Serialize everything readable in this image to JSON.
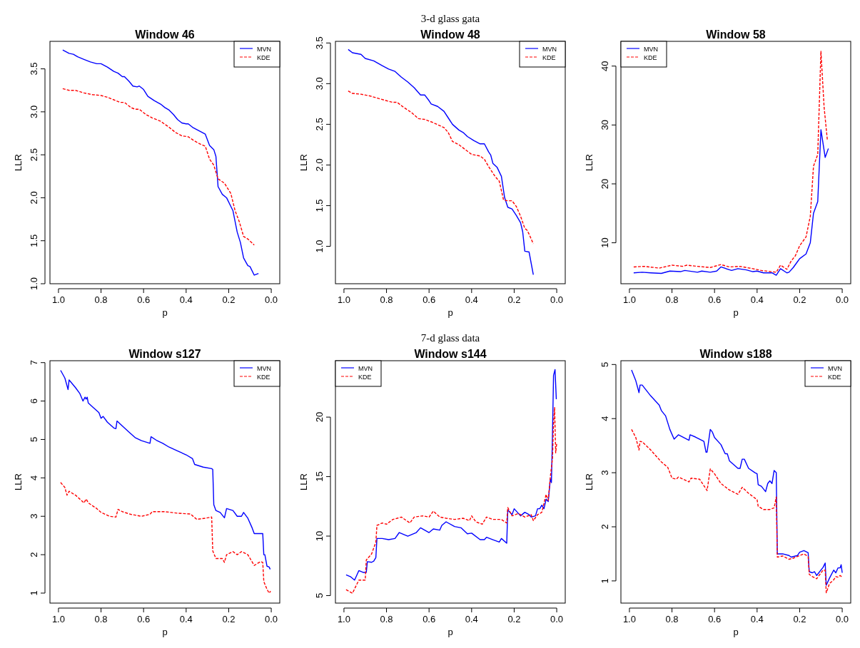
{
  "chart_data": [
    {
      "type": "line",
      "title": "Window 46",
      "xlabel": "p",
      "ylabel": "LLR",
      "legend": "top right",
      "xlim": [
        1.04,
        -0.04
      ],
      "ylim": [
        1.0,
        3.82
      ],
      "xticks": [
        {
          "value": 1,
          "label": "1.0"
        },
        {
          "value": 0.8,
          "label": "0.8"
        },
        {
          "value": 0.6,
          "label": "0.6"
        },
        {
          "value": 0.4,
          "label": "0.4"
        },
        {
          "value": 0.2,
          "label": "0.2"
        },
        {
          "value": 0,
          "label": "0.0"
        }
      ],
      "yticks": [
        {
          "value": 1,
          "label": "1.0"
        },
        1.5,
        {
          "value": 2,
          "label": "2.0"
        },
        2.5,
        {
          "value": 3,
          "label": "3.0"
        },
        3.5
      ],
      "series": [
        {
          "name": "MVN",
          "color": "#0000ff",
          "line_style": "solid",
          "x": [
            0.98,
            0.95,
            0.93,
            0.91,
            0.88,
            0.85,
            0.82,
            0.8,
            0.77,
            0.74,
            0.72,
            0.7,
            0.69,
            0.67,
            0.65,
            0.63,
            0.62,
            0.6,
            0.58,
            0.55,
            0.52,
            0.5,
            0.48,
            0.46,
            0.44,
            0.42,
            0.4,
            0.39,
            0.37,
            0.34,
            0.31,
            0.29,
            0.27,
            0.26,
            0.25,
            0.23,
            0.21,
            0.19,
            0.18,
            0.16,
            0.145,
            0.13,
            0.11,
            0.1,
            0.08,
            0.06
          ],
          "values": [
            3.72,
            3.68,
            3.67,
            3.64,
            3.61,
            3.58,
            3.56,
            3.56,
            3.52,
            3.47,
            3.45,
            3.41,
            3.41,
            3.36,
            3.3,
            3.29,
            3.3,
            3.26,
            3.18,
            3.13,
            3.09,
            3.05,
            3.02,
            2.97,
            2.91,
            2.87,
            2.86,
            2.86,
            2.82,
            2.78,
            2.74,
            2.61,
            2.56,
            2.48,
            2.13,
            2.04,
            2.0,
            1.9,
            1.85,
            1.6,
            1.48,
            1.3,
            1.21,
            1.2,
            1.1,
            1.12
          ]
        },
        {
          "name": "KDE",
          "color": "#ff0000",
          "line_style": "dashed",
          "x": [
            0.98,
            0.95,
            0.92,
            0.88,
            0.84,
            0.8,
            0.77,
            0.74,
            0.71,
            0.69,
            0.66,
            0.64,
            0.62,
            0.59,
            0.56,
            0.52,
            0.48,
            0.45,
            0.42,
            0.39,
            0.36,
            0.33,
            0.31,
            0.29,
            0.27,
            0.25,
            0.22,
            0.19,
            0.17,
            0.15,
            0.13,
            0.11,
            0.08
          ],
          "values": [
            3.27,
            3.25,
            3.25,
            3.22,
            3.2,
            3.19,
            3.17,
            3.14,
            3.11,
            3.11,
            3.05,
            3.03,
            3.03,
            2.97,
            2.93,
            2.89,
            2.82,
            2.76,
            2.72,
            2.71,
            2.66,
            2.62,
            2.6,
            2.45,
            2.38,
            2.22,
            2.17,
            2.05,
            1.85,
            1.72,
            1.55,
            1.52,
            1.45
          ]
        }
      ]
    },
    {
      "type": "line",
      "subtitle": "3-d glass gata",
      "title": "Window 48",
      "xlabel": "p",
      "ylabel": "LLR",
      "legend": "top right",
      "xlim": [
        1.04,
        -0.04
      ],
      "ylim": [
        0.54,
        3.52
      ],
      "xticks": [
        {
          "value": 1,
          "label": "1.0"
        },
        {
          "value": 0.8,
          "label": "0.8"
        },
        {
          "value": 0.6,
          "label": "0.6"
        },
        {
          "value": 0.4,
          "label": "0.4"
        },
        {
          "value": 0.2,
          "label": "0.2"
        },
        {
          "value": 0,
          "label": "0.0"
        }
      ],
      "yticks": [
        {
          "value": 1,
          "label": "1.0"
        },
        1.5,
        {
          "value": 2,
          "label": "2.0"
        },
        2.5,
        {
          "value": 3,
          "label": "3.0"
        },
        3.5
      ],
      "series": [
        {
          "name": "MVN",
          "color": "#0000ff",
          "line_style": "solid",
          "x": [
            0.98,
            0.96,
            0.92,
            0.9,
            0.86,
            0.82,
            0.79,
            0.76,
            0.73,
            0.7,
            0.67,
            0.64,
            0.62,
            0.6,
            0.59,
            0.56,
            0.53,
            0.51,
            0.49,
            0.46,
            0.44,
            0.42,
            0.39,
            0.36,
            0.34,
            0.32,
            0.31,
            0.3,
            0.28,
            0.26,
            0.245,
            0.23,
            0.21,
            0.19,
            0.17,
            0.16,
            0.15,
            0.13,
            0.11
          ],
          "values": [
            3.42,
            3.38,
            3.36,
            3.31,
            3.28,
            3.22,
            3.18,
            3.15,
            3.08,
            3.02,
            2.95,
            2.86,
            2.86,
            2.79,
            2.75,
            2.72,
            2.66,
            2.58,
            2.5,
            2.43,
            2.4,
            2.35,
            2.3,
            2.26,
            2.26,
            2.16,
            2.12,
            2.02,
            1.97,
            1.86,
            1.6,
            1.48,
            1.46,
            1.38,
            1.29,
            1.18,
            0.94,
            0.93,
            0.65
          ]
        },
        {
          "name": "KDE",
          "color": "#ff0000",
          "line_style": "dashed",
          "x": [
            0.98,
            0.96,
            0.92,
            0.88,
            0.84,
            0.8,
            0.77,
            0.75,
            0.72,
            0.68,
            0.65,
            0.62,
            0.58,
            0.53,
            0.51,
            0.49,
            0.46,
            0.42,
            0.4,
            0.36,
            0.34,
            0.32,
            0.29,
            0.27,
            0.25,
            0.23,
            0.21,
            0.19,
            0.17,
            0.15,
            0.14,
            0.13,
            0.11
          ],
          "values": [
            2.91,
            2.88,
            2.87,
            2.85,
            2.82,
            2.79,
            2.77,
            2.77,
            2.71,
            2.64,
            2.57,
            2.56,
            2.52,
            2.46,
            2.4,
            2.29,
            2.25,
            2.17,
            2.13,
            2.11,
            2.07,
            1.98,
            1.86,
            1.8,
            1.57,
            1.56,
            1.56,
            1.49,
            1.37,
            1.22,
            1.2,
            1.15,
            1.03
          ]
        }
      ]
    },
    {
      "type": "line",
      "title": "Window 58",
      "xlabel": "p",
      "ylabel": "LLR",
      "legend": "top left",
      "xlim": [
        1.04,
        -0.04
      ],
      "ylim": [
        3.05,
        44.2
      ],
      "xticks": [
        {
          "value": 1,
          "label": "1.0"
        },
        {
          "value": 0.8,
          "label": "0.8"
        },
        {
          "value": 0.6,
          "label": "0.6"
        },
        {
          "value": 0.4,
          "label": "0.4"
        },
        {
          "value": 0.2,
          "label": "0.2"
        },
        {
          "value": 0,
          "label": "0.0"
        }
      ],
      "yticks": [
        10,
        20,
        30,
        40
      ],
      "series": [
        {
          "name": "MVN",
          "color": "#0000ff",
          "line_style": "solid",
          "x": [
            0.98,
            0.94,
            0.9,
            0.85,
            0.81,
            0.76,
            0.74,
            0.68,
            0.66,
            0.62,
            0.59,
            0.57,
            0.52,
            0.49,
            0.45,
            0.42,
            0.4,
            0.37,
            0.33,
            0.31,
            0.29,
            0.26,
            0.25,
            0.23,
            0.21,
            0.2,
            0.17,
            0.15,
            0.135,
            0.115,
            0.1,
            0.08,
            0.065
          ],
          "values": [
            4.9,
            5.0,
            4.9,
            4.8,
            5.2,
            5.1,
            5.3,
            5.0,
            5.2,
            5.0,
            5.2,
            5.9,
            5.3,
            5.6,
            5.4,
            5.1,
            5.2,
            4.9,
            4.9,
            4.5,
            5.6,
            4.9,
            5.0,
            5.8,
            6.8,
            7.3,
            8.1,
            10.0,
            15.0,
            17.0,
            29.2,
            24.5,
            26.0
          ]
        },
        {
          "name": "KDE",
          "color": "#ff0000",
          "line_style": "dashed",
          "x": [
            0.98,
            0.93,
            0.86,
            0.8,
            0.75,
            0.73,
            0.68,
            0.62,
            0.57,
            0.53,
            0.48,
            0.42,
            0.38,
            0.31,
            0.29,
            0.26,
            0.24,
            0.22,
            0.2,
            0.17,
            0.15,
            0.135,
            0.115,
            0.1,
            0.085,
            0.07
          ],
          "values": [
            5.9,
            6.0,
            5.7,
            6.2,
            6.0,
            6.2,
            6.0,
            5.8,
            6.3,
            5.9,
            6.0,
            5.6,
            5.3,
            5.0,
            6.2,
            5.5,
            6.9,
            7.8,
            9.5,
            11.0,
            14.5,
            23.0,
            25.0,
            42.5,
            33.0,
            27.5
          ]
        }
      ]
    },
    {
      "type": "line",
      "title": "Window s127",
      "xlabel": "p",
      "ylabel": "LLR",
      "legend": "top right",
      "xlim": [
        1.04,
        -0.04
      ],
      "ylim": [
        0.74,
        7.05
      ],
      "xticks": [
        {
          "value": 1,
          "label": "1.0"
        },
        {
          "value": 0.8,
          "label": "0.8"
        },
        {
          "value": 0.6,
          "label": "0.6"
        },
        {
          "value": 0.4,
          "label": "0.4"
        },
        {
          "value": 0.2,
          "label": "0.2"
        },
        {
          "value": 0,
          "label": "0.0"
        }
      ],
      "yticks": [
        1,
        2,
        3,
        4,
        5,
        6,
        7
      ],
      "series": [
        {
          "name": "MVN",
          "color": "#0000ff",
          "line_style": "solid",
          "x": [
            0.99,
            0.97,
            0.955,
            0.95,
            0.92,
            0.9,
            0.885,
            0.875,
            0.87,
            0.865,
            0.86,
            0.84,
            0.81,
            0.8,
            0.79,
            0.77,
            0.74,
            0.73,
            0.725,
            0.7,
            0.67,
            0.64,
            0.61,
            0.57,
            0.565,
            0.54,
            0.51,
            0.48,
            0.44,
            0.4,
            0.37,
            0.36,
            0.32,
            0.28,
            0.275,
            0.27,
            0.26,
            0.24,
            0.22,
            0.21,
            0.18,
            0.16,
            0.14,
            0.13,
            0.11,
            0.09,
            0.08,
            0.04,
            0.035,
            0.03,
            0.02,
            0.01,
            0.005
          ],
          "values": [
            6.8,
            6.6,
            6.3,
            6.55,
            6.35,
            6.2,
            6.0,
            6.1,
            6.05,
            6.1,
            5.95,
            5.85,
            5.7,
            5.55,
            5.6,
            5.45,
            5.3,
            5.28,
            5.48,
            5.35,
            5.2,
            5.05,
            4.97,
            4.9,
            5.07,
            4.98,
            4.9,
            4.8,
            4.7,
            4.6,
            4.5,
            4.35,
            4.28,
            4.24,
            4.22,
            3.3,
            3.15,
            3.1,
            2.96,
            3.2,
            3.15,
            3.0,
            3.0,
            3.1,
            2.95,
            2.7,
            2.55,
            2.55,
            2.0,
            2.0,
            1.7,
            1.68,
            1.62
          ]
        },
        {
          "name": "KDE",
          "color": "#ff0000",
          "line_style": "dashed",
          "x": [
            0.99,
            0.97,
            0.96,
            0.95,
            0.92,
            0.88,
            0.87,
            0.86,
            0.82,
            0.8,
            0.76,
            0.73,
            0.72,
            0.7,
            0.66,
            0.61,
            0.57,
            0.56,
            0.5,
            0.44,
            0.38,
            0.35,
            0.31,
            0.28,
            0.275,
            0.26,
            0.23,
            0.22,
            0.21,
            0.18,
            0.16,
            0.14,
            0.11,
            0.08,
            0.05,
            0.04,
            0.035,
            0.02,
            0.01,
            0.003
          ],
          "values": [
            3.88,
            3.75,
            3.55,
            3.65,
            3.55,
            3.35,
            3.45,
            3.35,
            3.2,
            3.1,
            3.0,
            2.98,
            3.18,
            3.12,
            3.05,
            3.0,
            3.05,
            3.12,
            3.12,
            3.08,
            3.06,
            2.92,
            2.95,
            2.98,
            2.1,
            1.9,
            1.9,
            1.8,
            2.0,
            2.08,
            2.0,
            2.08,
            2.0,
            1.72,
            1.82,
            1.8,
            1.3,
            1.1,
            1.0,
            1.05
          ]
        }
      ]
    },
    {
      "type": "line",
      "subtitle": "7-d glass data",
      "title": "Window s144",
      "xlabel": "p",
      "ylabel": "LLR",
      "legend": "top left",
      "xlim": [
        1.04,
        -0.04
      ],
      "ylim": [
        4.37,
        24.74
      ],
      "xticks": [
        {
          "value": 1,
          "label": "1.0"
        },
        {
          "value": 0.8,
          "label": "0.8"
        },
        {
          "value": 0.6,
          "label": "0.6"
        },
        {
          "value": 0.4,
          "label": "0.4"
        },
        {
          "value": 0.2,
          "label": "0.2"
        },
        {
          "value": 0,
          "label": "0.0"
        }
      ],
      "yticks": [
        5,
        10,
        15,
        20
      ],
      "series": [
        {
          "name": "MVN",
          "color": "#0000ff",
          "line_style": "solid",
          "x": [
            0.99,
            0.97,
            0.95,
            0.93,
            0.91,
            0.895,
            0.89,
            0.87,
            0.86,
            0.85,
            0.845,
            0.82,
            0.79,
            0.76,
            0.74,
            0.7,
            0.66,
            0.64,
            0.6,
            0.58,
            0.55,
            0.54,
            0.52,
            0.48,
            0.45,
            0.42,
            0.4,
            0.36,
            0.34,
            0.33,
            0.3,
            0.27,
            0.26,
            0.235,
            0.23,
            0.21,
            0.2,
            0.17,
            0.15,
            0.13,
            0.12,
            0.1,
            0.09,
            0.08,
            0.07,
            0.06,
            0.05,
            0.04,
            0.03,
            0.025,
            0.02,
            0.015,
            0.008,
            0.002
          ],
          "values": [
            6.75,
            6.6,
            6.3,
            7.1,
            6.95,
            6.95,
            7.85,
            7.8,
            7.9,
            8.2,
            9.8,
            9.8,
            9.7,
            9.8,
            10.3,
            10.0,
            10.3,
            10.7,
            10.3,
            10.6,
            10.5,
            10.9,
            11.2,
            10.8,
            10.7,
            10.2,
            10.25,
            9.7,
            9.7,
            9.9,
            9.7,
            9.5,
            9.8,
            9.4,
            12.2,
            11.8,
            12.3,
            11.7,
            12.0,
            11.8,
            11.6,
            11.7,
            12.3,
            12.3,
            12.6,
            12.3,
            13.1,
            12.9,
            14.8,
            14.5,
            18.5,
            23.5,
            24.0,
            21.5
          ]
        },
        {
          "name": "KDE",
          "color": "#ff0000",
          "line_style": "dashed",
          "x": [
            0.99,
            0.96,
            0.93,
            0.9,
            0.895,
            0.87,
            0.85,
            0.845,
            0.82,
            0.8,
            0.77,
            0.73,
            0.69,
            0.67,
            0.63,
            0.6,
            0.58,
            0.55,
            0.52,
            0.48,
            0.44,
            0.41,
            0.4,
            0.38,
            0.35,
            0.33,
            0.3,
            0.26,
            0.235,
            0.23,
            0.21,
            0.18,
            0.15,
            0.12,
            0.11,
            0.09,
            0.07,
            0.05,
            0.04,
            0.03,
            0.02,
            0.015,
            0.01,
            0.005,
            0.0
          ],
          "values": [
            5.5,
            5.2,
            6.3,
            6.3,
            8.0,
            8.5,
            9.5,
            10.9,
            11.1,
            11.0,
            11.4,
            11.6,
            11.1,
            11.6,
            11.7,
            11.6,
            12.1,
            11.6,
            11.5,
            11.4,
            11.5,
            11.3,
            11.7,
            11.2,
            11.0,
            11.6,
            11.4,
            11.4,
            11.1,
            12.4,
            11.7,
            11.9,
            11.6,
            11.8,
            11.3,
            11.8,
            12.0,
            13.5,
            13.0,
            15.0,
            16.5,
            19.5,
            20.8,
            17.0,
            17.8
          ]
        }
      ]
    },
    {
      "type": "line",
      "title": "Window s188",
      "xlabel": "p",
      "ylabel": "LLR",
      "legend": "top right",
      "xlim": [
        1.04,
        -0.04
      ],
      "ylim": [
        0.59,
        5.07
      ],
      "xticks": [
        {
          "value": 1,
          "label": "1.0"
        },
        {
          "value": 0.8,
          "label": "0.8"
        },
        {
          "value": 0.6,
          "label": "0.6"
        },
        {
          "value": 0.4,
          "label": "0.4"
        },
        {
          "value": 0.2,
          "label": "0.2"
        },
        {
          "value": 0,
          "label": "0.0"
        }
      ],
      "yticks": [
        1,
        2,
        3,
        4,
        5
      ],
      "series": [
        {
          "name": "MVN",
          "color": "#0000ff",
          "line_style": "solid",
          "x": [
            0.99,
            0.97,
            0.955,
            0.95,
            0.94,
            0.9,
            0.86,
            0.85,
            0.83,
            0.81,
            0.79,
            0.77,
            0.72,
            0.715,
            0.69,
            0.65,
            0.64,
            0.635,
            0.62,
            0.61,
            0.6,
            0.57,
            0.55,
            0.54,
            0.53,
            0.49,
            0.48,
            0.47,
            0.46,
            0.44,
            0.41,
            0.4,
            0.395,
            0.38,
            0.36,
            0.35,
            0.34,
            0.33,
            0.32,
            0.31,
            0.305,
            0.28,
            0.25,
            0.24,
            0.21,
            0.2,
            0.18,
            0.16,
            0.155,
            0.14,
            0.13,
            0.12,
            0.09,
            0.08,
            0.075,
            0.06,
            0.04,
            0.03,
            0.02,
            0.01,
            0.005,
            0.0
          ],
          "values": [
            4.9,
            4.7,
            4.48,
            4.62,
            4.62,
            4.42,
            4.25,
            4.15,
            4.05,
            3.8,
            3.62,
            3.7,
            3.6,
            3.7,
            3.66,
            3.58,
            3.38,
            3.38,
            3.8,
            3.75,
            3.65,
            3.52,
            3.35,
            3.35,
            3.22,
            3.08,
            3.08,
            3.25,
            3.25,
            3.08,
            3.0,
            2.98,
            2.78,
            2.75,
            2.65,
            2.8,
            2.85,
            2.8,
            3.04,
            3.0,
            1.5,
            1.5,
            1.47,
            1.44,
            1.47,
            1.53,
            1.56,
            1.52,
            1.17,
            1.15,
            1.17,
            1.1,
            1.25,
            1.33,
            0.92,
            1.05,
            1.2,
            1.15,
            1.24,
            1.24,
            1.3,
            1.15
          ]
        },
        {
          "name": "KDE",
          "color": "#ff0000",
          "line_style": "dashed",
          "x": [
            0.99,
            0.97,
            0.955,
            0.95,
            0.94,
            0.9,
            0.85,
            0.82,
            0.8,
            0.78,
            0.77,
            0.72,
            0.71,
            0.67,
            0.64,
            0.635,
            0.62,
            0.6,
            0.57,
            0.53,
            0.49,
            0.47,
            0.44,
            0.4,
            0.395,
            0.37,
            0.34,
            0.32,
            0.31,
            0.305,
            0.28,
            0.25,
            0.23,
            0.2,
            0.18,
            0.16,
            0.155,
            0.14,
            0.12,
            0.09,
            0.08,
            0.075,
            0.06,
            0.04,
            0.03,
            0.02,
            0.01,
            0.0
          ],
          "values": [
            3.8,
            3.65,
            3.42,
            3.58,
            3.57,
            3.42,
            3.2,
            3.1,
            2.9,
            2.88,
            2.92,
            2.83,
            2.9,
            2.88,
            2.7,
            2.67,
            3.07,
            2.98,
            2.8,
            2.68,
            2.6,
            2.73,
            2.62,
            2.5,
            2.38,
            2.32,
            2.32,
            2.35,
            2.55,
            1.44,
            1.46,
            1.4,
            1.42,
            1.47,
            1.5,
            1.45,
            1.12,
            1.08,
            1.04,
            1.2,
            1.2,
            0.78,
            0.95,
            1.02,
            1.08,
            1.07,
            1.1,
            1.07
          ]
        }
      ]
    }
  ]
}
